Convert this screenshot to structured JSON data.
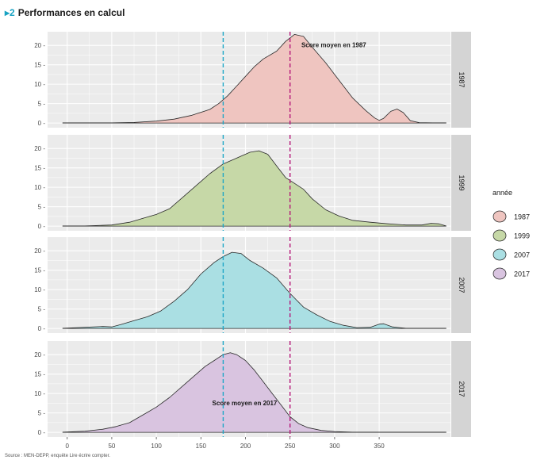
{
  "figure": {
    "number": "2",
    "title": "Performances en calcul"
  },
  "source_text": "Source : MEN-DEPP, enquête Lire écrire compter.",
  "colors": {
    "panel_bg": "#ebebeb",
    "grid": "#ffffff",
    "strip_bg": "#d4d4d4",
    "vline_1987": "#b5197a",
    "vline_2017": "#1ea7c7",
    "arrow": "#17a2c2"
  },
  "chart_data": {
    "type": "area",
    "title": "Performances en calcul",
    "xlabel": "",
    "ylabel": "",
    "xlim": [
      -22,
      430
    ],
    "ylim": [
      -1.2,
      23.5
    ],
    "x_ticks": [
      0,
      50,
      100,
      150,
      200,
      250,
      300,
      350
    ],
    "x_tick_labels": [
      "0",
      "50",
      "100",
      "150",
      "200",
      "250",
      "300",
      "350"
    ],
    "y_ticks": [
      0,
      5,
      10,
      15,
      20
    ],
    "y_tick_labels": [
      "0 -",
      "5 -",
      "10 -",
      "15 -",
      "20 -"
    ],
    "legend_title": "année",
    "legend_position": "right",
    "vlines": [
      {
        "x": 175,
        "label": "Score moyen en 2017",
        "color": "#1ea7c7"
      },
      {
        "x": 250,
        "label": "Score moyen en 1987",
        "color": "#b5197a"
      }
    ],
    "annotations": [
      {
        "panel": "1987",
        "x": 260,
        "y": 19.5,
        "text": "Score moyen en 1987"
      },
      {
        "panel": "2017",
        "x": 160,
        "y": 7.0,
        "text": "Score moyen en 2017"
      }
    ],
    "series": [
      {
        "name": "1987",
        "color": "#efc5c0",
        "points": [
          [
            -5,
            0.05
          ],
          [
            20,
            0.05
          ],
          [
            50,
            0.05
          ],
          [
            75,
            0.15
          ],
          [
            100,
            0.5
          ],
          [
            120,
            1
          ],
          [
            140,
            2
          ],
          [
            160,
            3.5
          ],
          [
            170,
            5
          ],
          [
            180,
            7
          ],
          [
            190,
            9.5
          ],
          [
            200,
            12
          ],
          [
            210,
            14.5
          ],
          [
            220,
            16.5
          ],
          [
            235,
            18.5
          ],
          [
            245,
            21
          ],
          [
            255,
            22.8
          ],
          [
            265,
            22.3
          ],
          [
            275,
            19.5
          ],
          [
            290,
            15.5
          ],
          [
            305,
            11
          ],
          [
            320,
            6.5
          ],
          [
            335,
            3.2
          ],
          [
            345,
            1.3
          ],
          [
            350,
            0.7
          ],
          [
            355,
            1.2
          ],
          [
            363,
            3
          ],
          [
            370,
            3.6
          ],
          [
            377,
            2.7
          ],
          [
            385,
            0.6
          ],
          [
            395,
            0.1
          ],
          [
            410,
            0.05
          ],
          [
            425,
            0.05
          ]
        ]
      },
      {
        "name": "1999",
        "color": "#c6d8a7",
        "points": [
          [
            -5,
            0.05
          ],
          [
            20,
            0.05
          ],
          [
            50,
            0.3
          ],
          [
            70,
            1
          ],
          [
            85,
            2
          ],
          [
            100,
            3
          ],
          [
            115,
            4.5
          ],
          [
            130,
            7.5
          ],
          [
            145,
            10.5
          ],
          [
            160,
            13.5
          ],
          [
            175,
            16
          ],
          [
            190,
            17.5
          ],
          [
            205,
            19
          ],
          [
            215,
            19.4
          ],
          [
            225,
            18.5
          ],
          [
            235,
            15.5
          ],
          [
            245,
            12.5
          ],
          [
            255,
            11
          ],
          [
            265,
            9.5
          ],
          [
            275,
            7
          ],
          [
            290,
            4.2
          ],
          [
            305,
            2.6
          ],
          [
            320,
            1.5
          ],
          [
            340,
            1
          ],
          [
            360,
            0.6
          ],
          [
            380,
            0.3
          ],
          [
            398,
            0.3
          ],
          [
            408,
            0.7
          ],
          [
            417,
            0.6
          ],
          [
            425,
            0.05
          ]
        ]
      },
      {
        "name": "2007",
        "color": "#aadfe3",
        "points": [
          [
            -5,
            0.05
          ],
          [
            20,
            0.3
          ],
          [
            40,
            0.5
          ],
          [
            50,
            0.4
          ],
          [
            60,
            1
          ],
          [
            75,
            2
          ],
          [
            90,
            3
          ],
          [
            105,
            4.5
          ],
          [
            120,
            7
          ],
          [
            135,
            10
          ],
          [
            150,
            14
          ],
          [
            165,
            17
          ],
          [
            175,
            18.5
          ],
          [
            185,
            19.6
          ],
          [
            195,
            19.3
          ],
          [
            205,
            17.5
          ],
          [
            220,
            15.5
          ],
          [
            235,
            13
          ],
          [
            250,
            9
          ],
          [
            265,
            5.5
          ],
          [
            280,
            3.5
          ],
          [
            295,
            1.8
          ],
          [
            310,
            0.8
          ],
          [
            325,
            0.2
          ],
          [
            340,
            0.3
          ],
          [
            350,
            1.1
          ],
          [
            355,
            1.2
          ],
          [
            365,
            0.4
          ],
          [
            380,
            0.05
          ],
          [
            425,
            0.05
          ]
        ]
      },
      {
        "name": "2017",
        "color": "#d9c4e0",
        "points": [
          [
            -5,
            0.05
          ],
          [
            20,
            0.3
          ],
          [
            40,
            0.8
          ],
          [
            55,
            1.5
          ],
          [
            70,
            2.5
          ],
          [
            85,
            4.5
          ],
          [
            100,
            6.5
          ],
          [
            115,
            9
          ],
          [
            130,
            12
          ],
          [
            145,
            15
          ],
          [
            155,
            17
          ],
          [
            165,
            18.5
          ],
          [
            175,
            20
          ],
          [
            183,
            20.5
          ],
          [
            190,
            20
          ],
          [
            200,
            18.5
          ],
          [
            210,
            16
          ],
          [
            220,
            13
          ],
          [
            230,
            10
          ],
          [
            240,
            7
          ],
          [
            250,
            4
          ],
          [
            260,
            2.2
          ],
          [
            270,
            1.2
          ],
          [
            285,
            0.5
          ],
          [
            300,
            0.2
          ],
          [
            320,
            0.05
          ],
          [
            425,
            0.05
          ]
        ]
      }
    ]
  }
}
